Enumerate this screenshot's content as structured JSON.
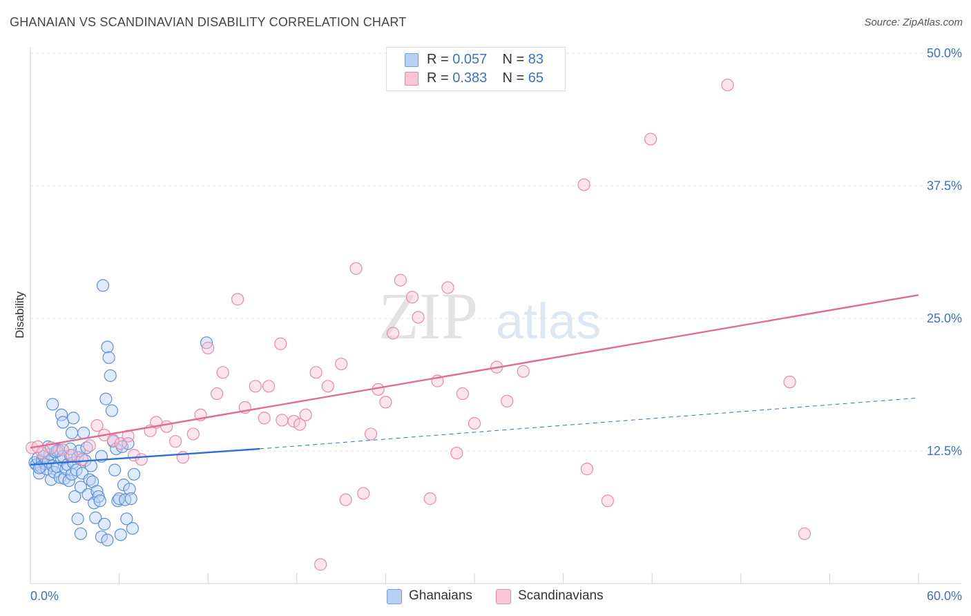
{
  "title": "GHANAIAN VS SCANDINAVIAN DISABILITY CORRELATION CHART",
  "source": "Source: ZipAtlas.com",
  "watermark": {
    "zip": "ZIP",
    "atlas": "atlas"
  },
  "legend": {
    "rows": [
      {
        "r_label": "R = ",
        "r_value": "0.057",
        "n_label": "N = ",
        "n_value": "83",
        "swatch": "#b8d0f4",
        "swatch_border": "#6f9fe0"
      },
      {
        "r_label": "R = ",
        "r_value": "0.383",
        "n_label": "N = ",
        "n_value": "65",
        "swatch": "#f9c6d6",
        "swatch_border": "#e68aa8"
      }
    ]
  },
  "bottom_legend": [
    {
      "label": "Ghanaians",
      "swatch": "#b8d0f4",
      "swatch_border": "#6f9fe0"
    },
    {
      "label": "Scandinavians",
      "swatch": "#f9c6d6",
      "swatch_border": "#e68aa8"
    }
  ],
  "chart_data": {
    "type": "scatter",
    "xlabel": "",
    "ylabel": "Disability",
    "xlim": [
      0,
      60
    ],
    "ylim": [
      0,
      50
    ],
    "x_tick_labels": [
      "0.0%",
      "60.0%"
    ],
    "y_ticks": [
      12.5,
      25.0,
      37.5,
      50.0
    ],
    "y_tick_labels": [
      "12.5%",
      "25.0%",
      "37.5%",
      "50.0%"
    ],
    "grid": true,
    "legend_placement": "top-center",
    "colors": {
      "ghanaians": "#5b8fd8",
      "ghanaians_line": "#2b6fd1",
      "scandinavians": "#e88aa8",
      "scandinavians_line": "#e06b93",
      "tick_text": "#3a72c8"
    },
    "series": [
      {
        "name": "Ghanaians",
        "trend": {
          "solid": [
            [
              0,
              11.2
            ],
            [
              15.5,
              12.7
            ]
          ],
          "dashed": [
            [
              15.5,
              12.7
            ],
            [
              60,
              17.5
            ]
          ]
        },
        "points": [
          [
            0.3,
            11.4
          ],
          [
            0.4,
            11.2
          ],
          [
            0.5,
            11.8
          ],
          [
            0.6,
            10.4
          ],
          [
            0.7,
            11.0
          ],
          [
            0.8,
            11.6
          ],
          [
            0.9,
            12.0
          ],
          [
            1.0,
            11.3
          ],
          [
            1.1,
            10.8
          ],
          [
            1.2,
            11.5
          ],
          [
            1.3,
            12.2
          ],
          [
            1.4,
            9.8
          ],
          [
            1.5,
            11.1
          ],
          [
            1.6,
            10.5
          ],
          [
            1.7,
            12.4
          ],
          [
            1.8,
            11.0
          ],
          [
            1.9,
            12.6
          ],
          [
            2.0,
            10.0
          ],
          [
            2.1,
            11.7
          ],
          [
            2.2,
            12.0
          ],
          [
            2.3,
            9.9
          ],
          [
            2.4,
            10.8
          ],
          [
            2.5,
            11.2
          ],
          [
            2.6,
            9.7
          ],
          [
            2.7,
            12.1
          ],
          [
            2.8,
            10.3
          ],
          [
            2.9,
            11.4
          ],
          [
            3.0,
            8.2
          ],
          [
            3.1,
            10.7
          ],
          [
            3.2,
            11.9
          ],
          [
            3.3,
            12.5
          ],
          [
            3.4,
            9.1
          ],
          [
            3.5,
            10.4
          ],
          [
            3.6,
            14.2
          ],
          [
            3.7,
            11.6
          ],
          [
            3.8,
            12.8
          ],
          [
            3.9,
            8.4
          ],
          [
            4.0,
            9.8
          ],
          [
            4.1,
            11.1
          ],
          [
            4.2,
            9.6
          ],
          [
            4.3,
            7.6
          ],
          [
            4.4,
            6.2
          ],
          [
            4.5,
            8.7
          ],
          [
            4.6,
            8.2
          ],
          [
            4.7,
            7.8
          ],
          [
            4.8,
            12.0
          ],
          [
            4.9,
            28.1
          ],
          [
            5.0,
            5.6
          ],
          [
            5.1,
            17.4
          ],
          [
            5.2,
            22.3
          ],
          [
            5.3,
            21.3
          ],
          [
            5.4,
            19.6
          ],
          [
            5.5,
            16.3
          ],
          [
            5.6,
            13.4
          ],
          [
            5.7,
            10.7
          ],
          [
            5.8,
            12.7
          ],
          [
            5.9,
            7.8
          ],
          [
            6.0,
            8.0
          ],
          [
            6.1,
            4.6
          ],
          [
            6.2,
            12.9
          ],
          [
            6.3,
            9.3
          ],
          [
            6.4,
            7.9
          ],
          [
            6.5,
            6.1
          ],
          [
            6.6,
            13.2
          ],
          [
            6.7,
            8.9
          ],
          [
            6.8,
            8.0
          ],
          [
            6.9,
            5.2
          ],
          [
            7.0,
            10.3
          ],
          [
            1.5,
            16.9
          ],
          [
            2.1,
            15.9
          ],
          [
            2.2,
            15.2
          ],
          [
            2.8,
            14.2
          ],
          [
            2.9,
            15.6
          ],
          [
            1.2,
            12.9
          ],
          [
            0.9,
            12.5
          ],
          [
            4.8,
            4.4
          ],
          [
            3.4,
            4.7
          ],
          [
            3.2,
            6.1
          ],
          [
            5.2,
            4.1
          ],
          [
            11.9,
            22.7
          ],
          [
            0.6,
            10.9
          ],
          [
            1.8,
            12.5
          ],
          [
            2.7,
            12.7
          ]
        ]
      },
      {
        "name": "Scandinavians",
        "trend": {
          "solid": [
            [
              0,
              12.8
            ],
            [
              60,
              27.2
            ]
          ]
        },
        "points": [
          [
            0.1,
            12.8
          ],
          [
            0.8,
            12.3
          ],
          [
            1.4,
            12.8
          ],
          [
            2.2,
            12.6
          ],
          [
            2.8,
            12.1
          ],
          [
            3.5,
            11.7
          ],
          [
            4.0,
            13.0
          ],
          [
            4.5,
            14.9
          ],
          [
            5.0,
            14.0
          ],
          [
            5.6,
            13.5
          ],
          [
            6.1,
            13.2
          ],
          [
            6.6,
            13.9
          ],
          [
            7.0,
            12.1
          ],
          [
            7.5,
            11.7
          ],
          [
            8.1,
            14.4
          ],
          [
            8.5,
            15.2
          ],
          [
            9.2,
            14.8
          ],
          [
            9.8,
            13.4
          ],
          [
            10.3,
            11.9
          ],
          [
            11.0,
            14.1
          ],
          [
            11.5,
            15.9
          ],
          [
            12.0,
            22.2
          ],
          [
            12.6,
            17.9
          ],
          [
            13.0,
            19.9
          ],
          [
            14.0,
            26.8
          ],
          [
            14.5,
            16.6
          ],
          [
            15.2,
            18.6
          ],
          [
            15.8,
            15.6
          ],
          [
            16.1,
            18.6
          ],
          [
            16.9,
            22.6
          ],
          [
            17.0,
            15.4
          ],
          [
            17.8,
            15.3
          ],
          [
            18.2,
            15.0
          ],
          [
            18.6,
            15.9
          ],
          [
            19.3,
            19.9
          ],
          [
            20.1,
            18.6
          ],
          [
            21.0,
            20.7
          ],
          [
            21.3,
            7.9
          ],
          [
            22.0,
            29.7
          ],
          [
            22.5,
            8.5
          ],
          [
            23.0,
            14.1
          ],
          [
            23.5,
            18.3
          ],
          [
            24.0,
            17.1
          ],
          [
            24.5,
            23.6
          ],
          [
            25.0,
            28.6
          ],
          [
            25.8,
            27.0
          ],
          [
            26.2,
            25.1
          ],
          [
            27.0,
            8.0
          ],
          [
            27.5,
            19.1
          ],
          [
            28.2,
            27.9
          ],
          [
            28.8,
            12.3
          ],
          [
            29.2,
            17.9
          ],
          [
            30.0,
            15.1
          ],
          [
            31.5,
            20.4
          ],
          [
            32.2,
            17.2
          ],
          [
            33.3,
            20.0
          ],
          [
            37.4,
            37.6
          ],
          [
            37.6,
            10.8
          ],
          [
            39.0,
            7.8
          ],
          [
            41.9,
            41.9
          ],
          [
            47.1,
            47.0
          ],
          [
            51.3,
            19.0
          ],
          [
            52.3,
            4.7
          ],
          [
            19.6,
            1.8
          ],
          [
            0.5,
            12.9
          ]
        ]
      }
    ]
  }
}
